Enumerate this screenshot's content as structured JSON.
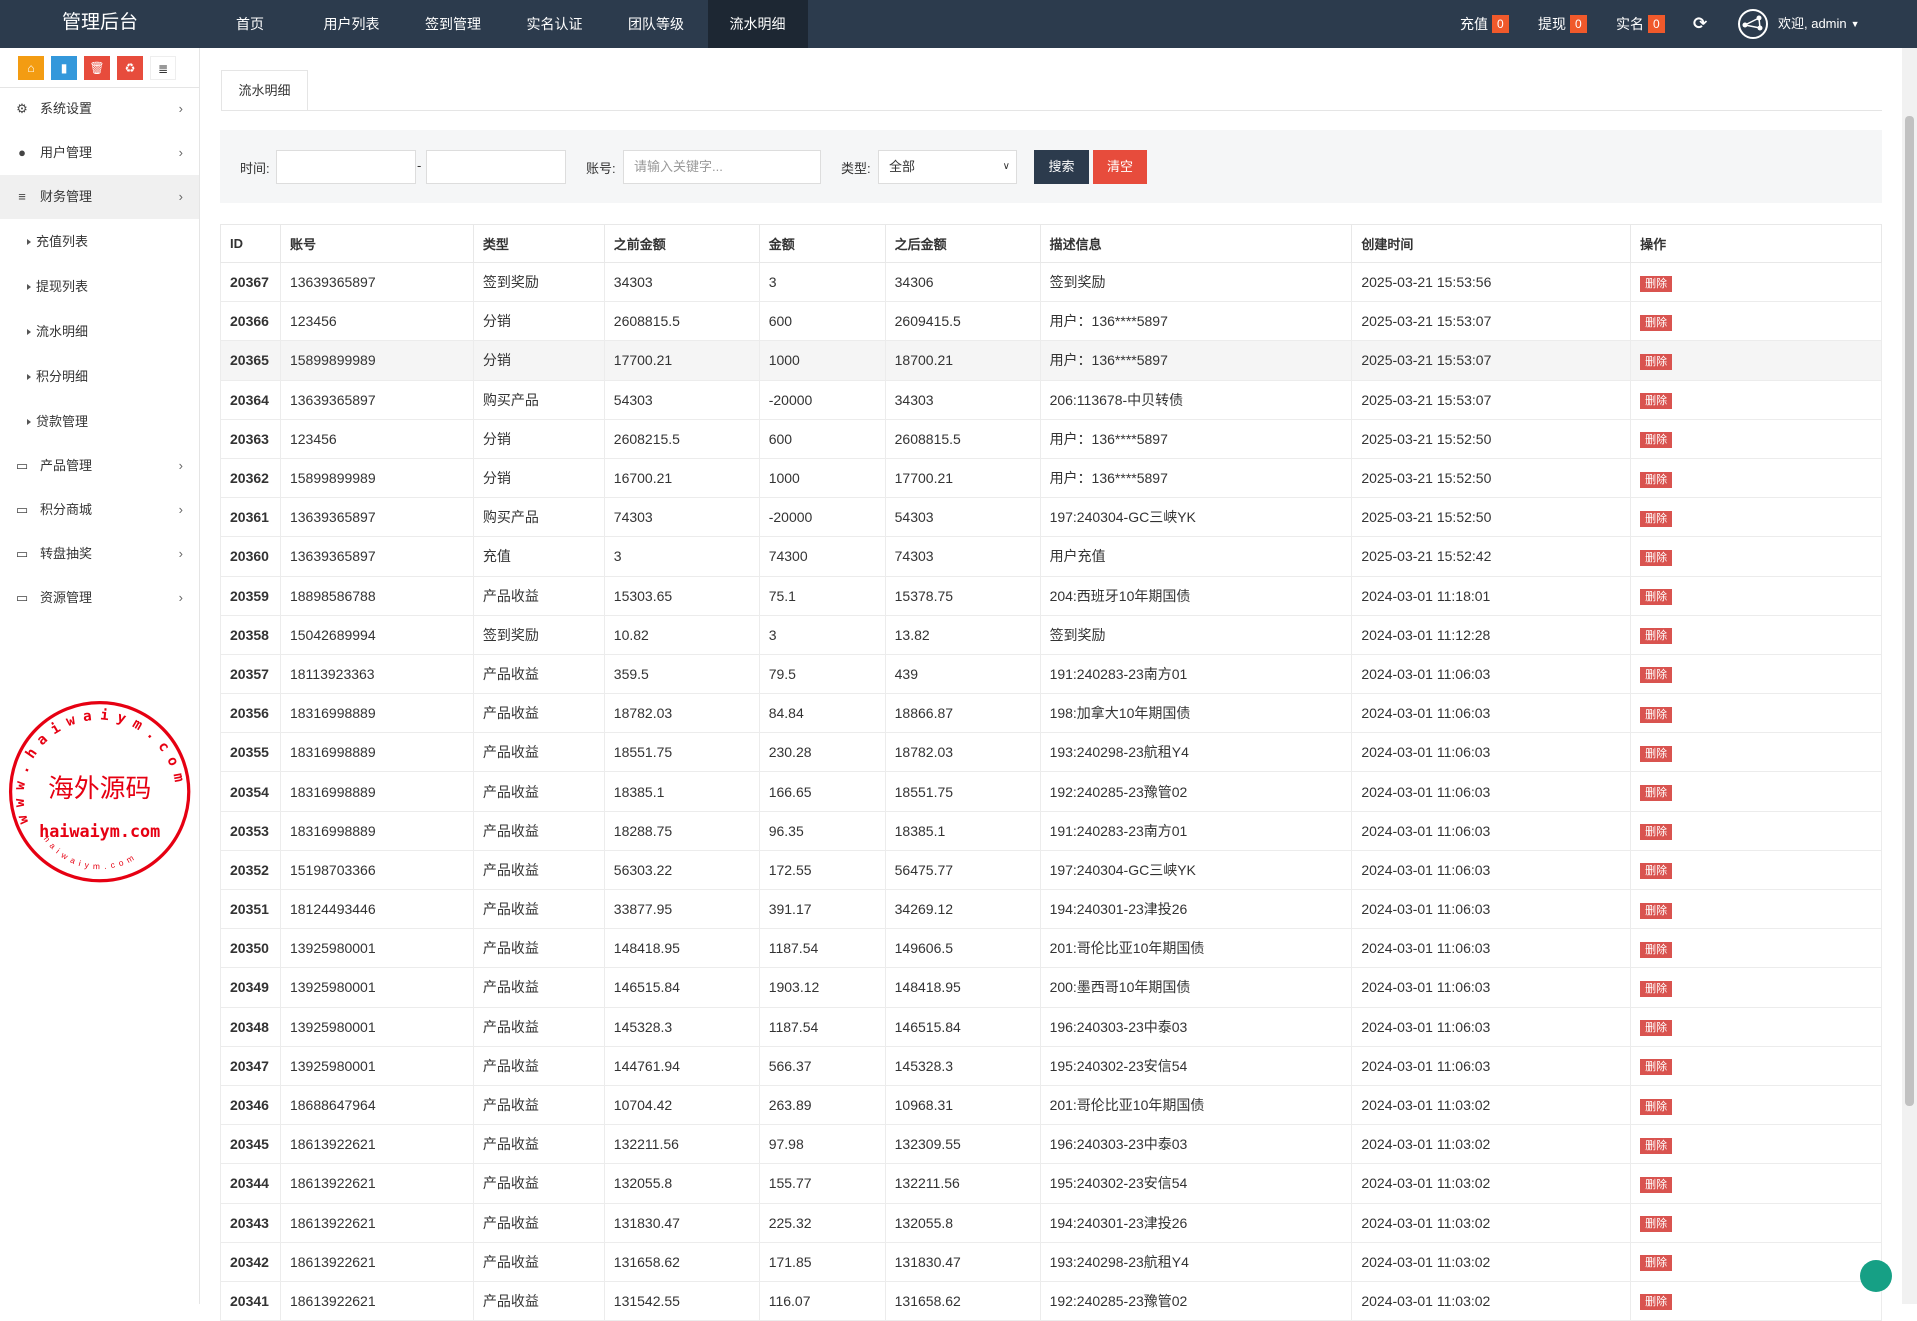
{
  "header": {
    "logo": "管理后台",
    "nav": [
      "首页",
      "用户列表",
      "签到管理",
      "实名认证",
      "团队等级",
      "流水明细"
    ],
    "active_nav": 5,
    "recharge": "充值",
    "recharge_count": "0",
    "withdraw": "提现",
    "withdraw_count": "0",
    "realname": "实名",
    "realname_count": "0",
    "welcome": "欢迎, admin"
  },
  "sidebar": {
    "quick_buttons": [
      {
        "icon": "home-icon",
        "color": "#f39c12"
      },
      {
        "icon": "file-icon",
        "color": "#3498db"
      },
      {
        "icon": "trash-icon",
        "color": "#e74c3c"
      },
      {
        "icon": "recycle-icon",
        "color": "#e74c3c"
      },
      {
        "icon": "list-icon",
        "color": "#ffffff"
      }
    ],
    "menu": [
      {
        "label": "系统设置",
        "icon": "gears-icon"
      },
      {
        "label": "用户管理",
        "icon": "user-icon"
      },
      {
        "label": "财务管理",
        "icon": "database-icon"
      }
    ],
    "submenu": [
      "充值列表",
      "提现列表",
      "流水明细",
      "积分明细",
      "贷款管理"
    ],
    "menu2": [
      {
        "label": "产品管理",
        "icon": "monitor-icon"
      },
      {
        "label": "积分商城",
        "icon": "monitor-icon"
      },
      {
        "label": "转盘抽奖",
        "icon": "monitor-icon"
      },
      {
        "label": "资源管理",
        "icon": "monitor-icon"
      }
    ]
  },
  "page": {
    "tab": "流水明细"
  },
  "search": {
    "time_label": "时间:",
    "time_sep": "-",
    "account_label": "账号:",
    "account_placeholder": "请输入关键字...",
    "type_label": "类型:",
    "type_value": "全部",
    "search_btn": "搜索",
    "clear_btn": "清空"
  },
  "table": {
    "columns": [
      "ID",
      "账号",
      "类型",
      "之前金额",
      "金额",
      "之后金额",
      "描述信息",
      "创建时间",
      "操作"
    ],
    "delete_label": "删除",
    "rows": [
      [
        "20367",
        "13639365897",
        "签到奖励",
        "34303",
        "3",
        "34306",
        "签到奖励",
        "2025-03-21 15:53:56"
      ],
      [
        "20366",
        "123456",
        "分销",
        "2608815.5",
        "600",
        "2609415.5",
        "用户：136****5897",
        "2025-03-21 15:53:07"
      ],
      [
        "20365",
        "15899899989",
        "分销",
        "17700.21",
        "1000",
        "18700.21",
        "用户：136****5897",
        "2025-03-21 15:53:07"
      ],
      [
        "20364",
        "13639365897",
        "购买产品",
        "54303",
        "-20000",
        "34303",
        "206:113678-中贝转债",
        "2025-03-21 15:53:07"
      ],
      [
        "20363",
        "123456",
        "分销",
        "2608215.5",
        "600",
        "2608815.5",
        "用户：136****5897",
        "2025-03-21 15:52:50"
      ],
      [
        "20362",
        "15899899989",
        "分销",
        "16700.21",
        "1000",
        "17700.21",
        "用户：136****5897",
        "2025-03-21 15:52:50"
      ],
      [
        "20361",
        "13639365897",
        "购买产品",
        "74303",
        "-20000",
        "54303",
        "197:240304-GC三峡YK",
        "2025-03-21 15:52:50"
      ],
      [
        "20360",
        "13639365897",
        "充值",
        "3",
        "74300",
        "74303",
        "用户充值",
        "2025-03-21 15:52:42"
      ],
      [
        "20359",
        "18898586788",
        "产品收益",
        "15303.65",
        "75.1",
        "15378.75",
        "204:西班牙10年期国债",
        "2024-03-01 11:18:01"
      ],
      [
        "20358",
        "15042689994",
        "签到奖励",
        "10.82",
        "3",
        "13.82",
        "签到奖励",
        "2024-03-01 11:12:28"
      ],
      [
        "20357",
        "18113923363",
        "产品收益",
        "359.5",
        "79.5",
        "439",
        "191:240283-23南方01",
        "2024-03-01 11:06:03"
      ],
      [
        "20356",
        "18316998889",
        "产品收益",
        "18782.03",
        "84.84",
        "18866.87",
        "198:加拿大10年期国债",
        "2024-03-01 11:06:03"
      ],
      [
        "20355",
        "18316998889",
        "产品收益",
        "18551.75",
        "230.28",
        "18782.03",
        "193:240298-23航租Y4",
        "2024-03-01 11:06:03"
      ],
      [
        "20354",
        "18316998889",
        "产品收益",
        "18385.1",
        "166.65",
        "18551.75",
        "192:240285-23豫管02",
        "2024-03-01 11:06:03"
      ],
      [
        "20353",
        "18316998889",
        "产品收益",
        "18288.75",
        "96.35",
        "18385.1",
        "191:240283-23南方01",
        "2024-03-01 11:06:03"
      ],
      [
        "20352",
        "15198703366",
        "产品收益",
        "56303.22",
        "172.55",
        "56475.77",
        "197:240304-GC三峡YK",
        "2024-03-01 11:06:03"
      ],
      [
        "20351",
        "18124493446",
        "产品收益",
        "33877.95",
        "391.17",
        "34269.12",
        "194:240301-23津投26",
        "2024-03-01 11:06:03"
      ],
      [
        "20350",
        "13925980001",
        "产品收益",
        "148418.95",
        "1187.54",
        "149606.5",
        "201:哥伦比亚10年期国债",
        "2024-03-01 11:06:03"
      ],
      [
        "20349",
        "13925980001",
        "产品收益",
        "146515.84",
        "1903.12",
        "148418.95",
        "200:墨西哥10年期国债",
        "2024-03-01 11:06:03"
      ],
      [
        "20348",
        "13925980001",
        "产品收益",
        "145328.3",
        "1187.54",
        "146515.84",
        "196:240303-23中泰03",
        "2024-03-01 11:06:03"
      ],
      [
        "20347",
        "13925980001",
        "产品收益",
        "144761.94",
        "566.37",
        "145328.3",
        "195:240302-23安信54",
        "2024-03-01 11:06:03"
      ],
      [
        "20346",
        "18688647964",
        "产品收益",
        "10704.42",
        "263.89",
        "10968.31",
        "201:哥伦比亚10年期国债",
        "2024-03-01 11:03:02"
      ],
      [
        "20345",
        "18613922621",
        "产品收益",
        "132211.56",
        "97.98",
        "132309.55",
        "196:240303-23中泰03",
        "2024-03-01 11:03:02"
      ],
      [
        "20344",
        "18613922621",
        "产品收益",
        "132055.8",
        "155.77",
        "132211.56",
        "195:240302-23安信54",
        "2024-03-01 11:03:02"
      ],
      [
        "20343",
        "18613922621",
        "产品收益",
        "131830.47",
        "225.32",
        "132055.8",
        "194:240301-23津投26",
        "2024-03-01 11:03:02"
      ],
      [
        "20342",
        "18613922621",
        "产品收益",
        "131658.62",
        "171.85",
        "131830.47",
        "193:240298-23航租Y4",
        "2024-03-01 11:03:02"
      ],
      [
        "20341",
        "18613922621",
        "产品收益",
        "131542.55",
        "116.07",
        "131658.62",
        "192:240285-23豫管02",
        "2024-03-01 11:03:02"
      ]
    ]
  },
  "watermark": {
    "center": "海外源码",
    "url": "haiwaiym.com",
    "ring": "www.haiwaiym.com",
    "inner": "haiwaiym.com",
    "color": "#e60012"
  }
}
